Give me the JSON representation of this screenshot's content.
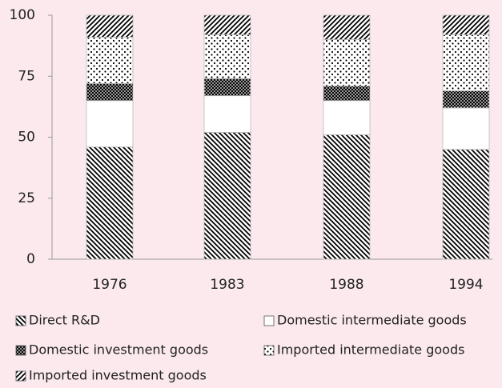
{
  "chart_data": {
    "type": "bar",
    "stacked": true,
    "categories": [
      "1976",
      "1983",
      "1988",
      "1994"
    ],
    "series": [
      {
        "name": "Direct R&D",
        "color": "#222222",
        "pattern": "diagonal-down",
        "values": [
          46,
          52,
          51,
          45
        ]
      },
      {
        "name": "Domestic intermediate goods",
        "color": "#ffffff",
        "pattern": "solid",
        "values": [
          19,
          15,
          14,
          17
        ]
      },
      {
        "name": "Domestic investment goods",
        "color": "#222222",
        "pattern": "crosshatch",
        "values": [
          7,
          7,
          6,
          7
        ]
      },
      {
        "name": "Imported intermediate goods",
        "color": "#222222",
        "pattern": "dots",
        "values": [
          19,
          18,
          19,
          23
        ]
      },
      {
        "name": "Imported investment goods",
        "color": "#222222",
        "pattern": "diagonal-up",
        "values": [
          9,
          8,
          10,
          8
        ]
      }
    ],
    "ylim": [
      0,
      100
    ],
    "yticks": [
      0,
      25,
      50,
      75,
      100
    ],
    "grid": false
  }
}
